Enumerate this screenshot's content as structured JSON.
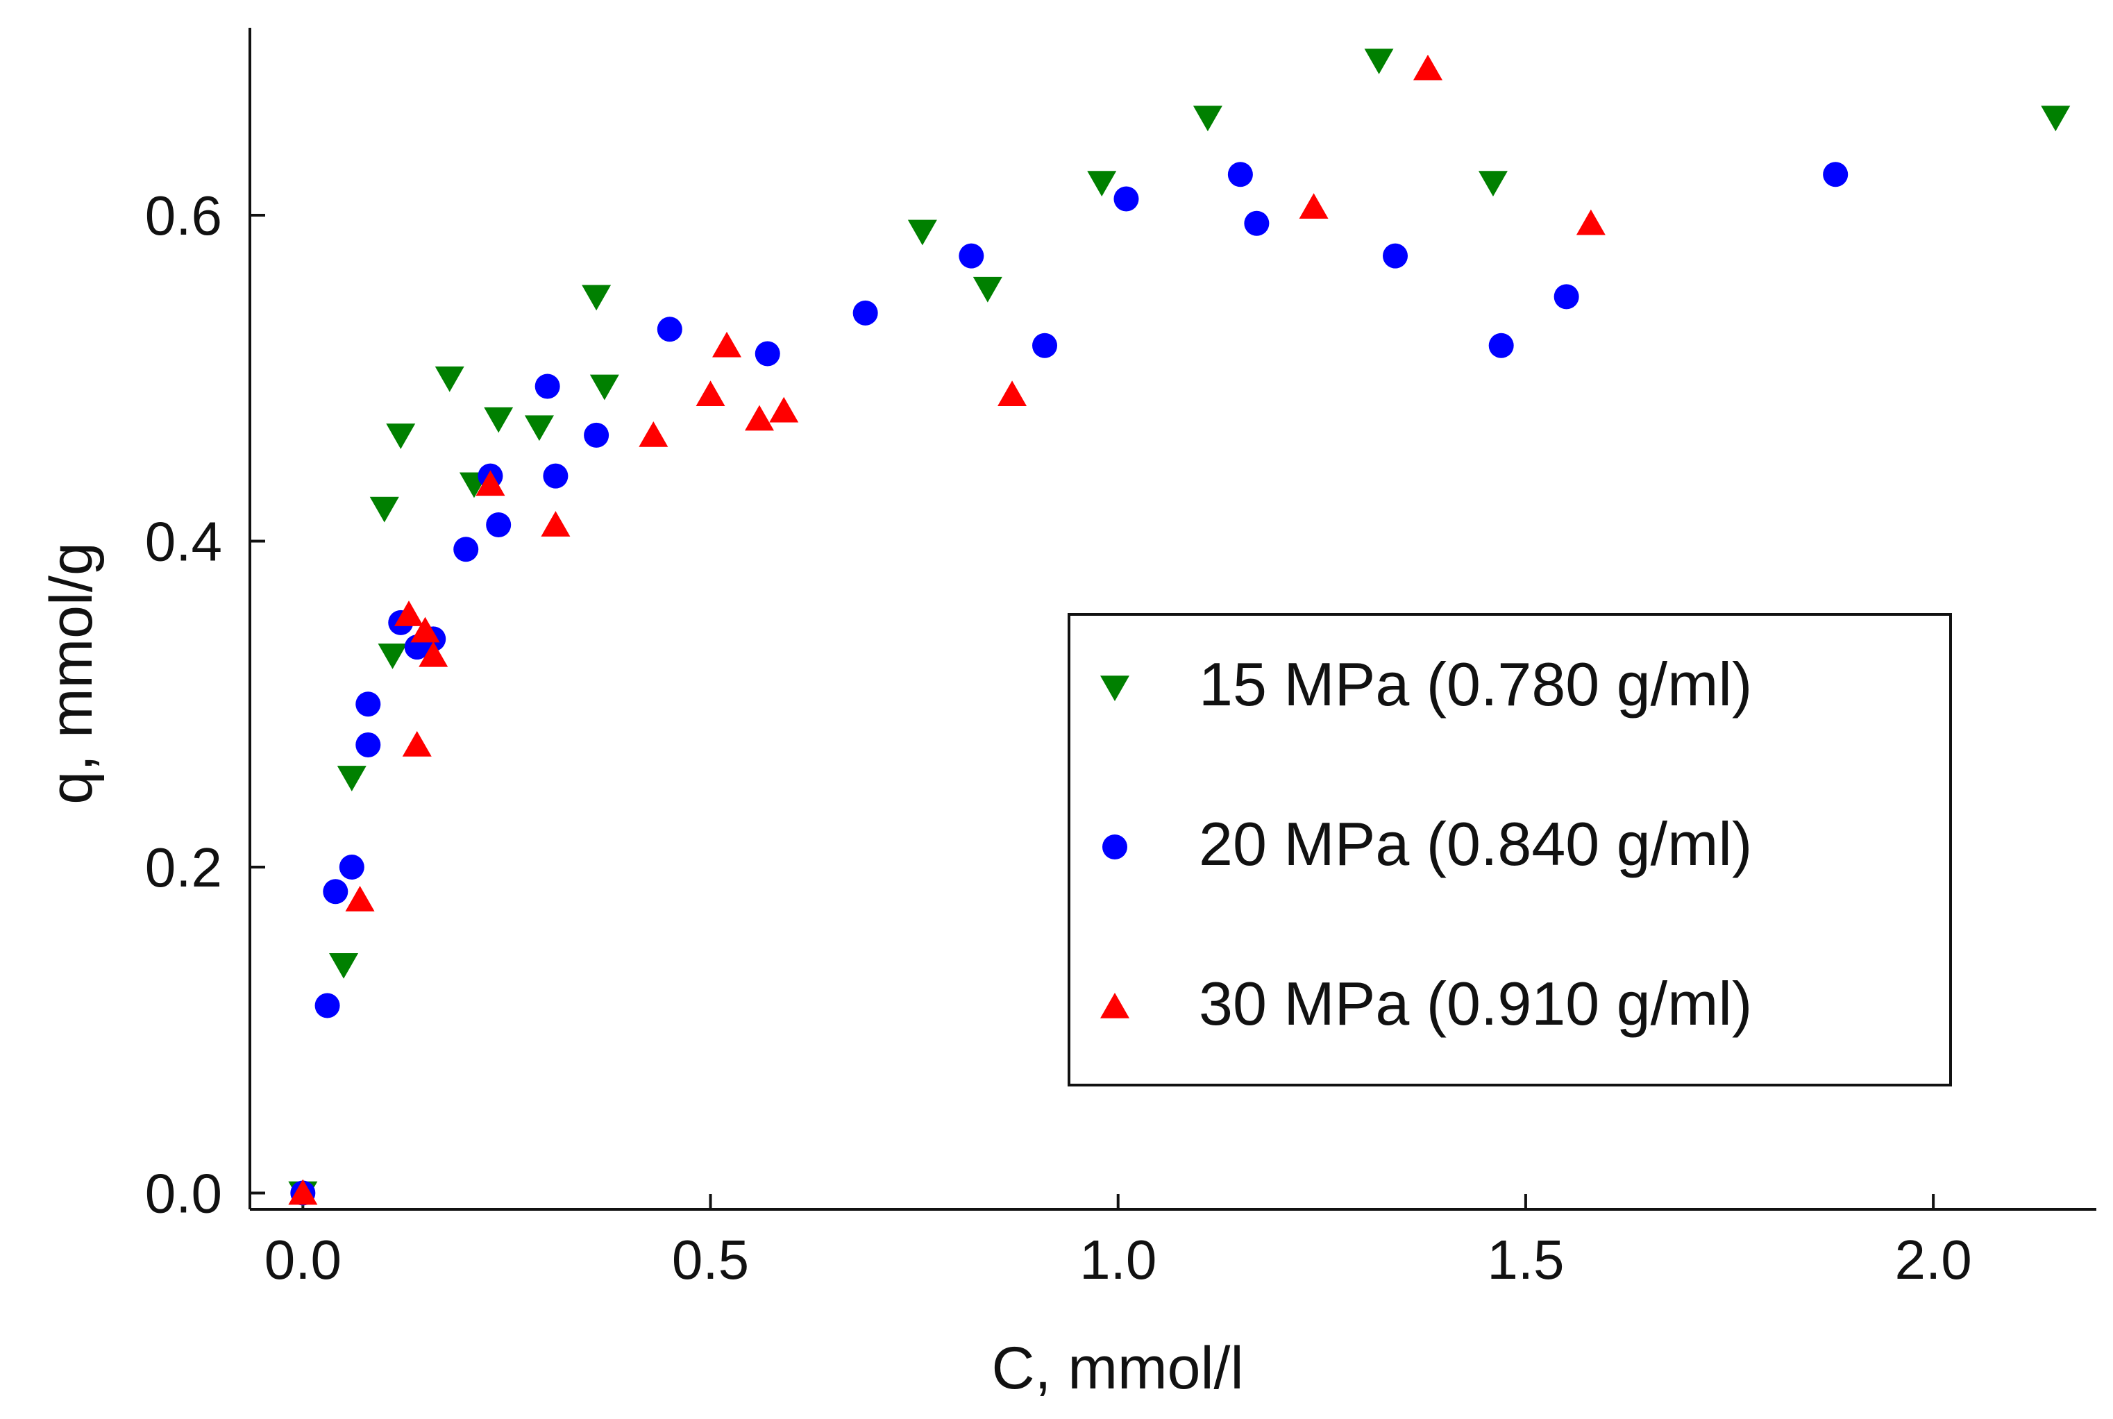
{
  "chart_data": {
    "type": "scatter",
    "title": "",
    "xlabel": "C, mmol/l",
    "ylabel": "q, mmol/g",
    "xlim": [
      -0.065,
      2.2
    ],
    "ylim": [
      -0.01,
      0.715
    ],
    "xticks": [
      0.0,
      0.5,
      1.0,
      1.5,
      2.0
    ],
    "yticks": [
      0.0,
      0.2,
      0.4,
      0.6
    ],
    "xtick_labels": [
      "0.0",
      "0.5",
      "1.0",
      "1.5",
      "2.0"
    ],
    "ytick_labels": [
      "0.0",
      "0.2",
      "0.4",
      "0.6"
    ],
    "grid": false,
    "legend_position": "center-right",
    "series": [
      {
        "name": "15 MPa (0.780 g/ml)",
        "marker": "triangle-down",
        "color": "#008000",
        "points": [
          [
            0.0,
            0.0
          ],
          [
            0.05,
            0.14
          ],
          [
            0.06,
            0.255
          ],
          [
            0.1,
            0.42
          ],
          [
            0.11,
            0.33
          ],
          [
            0.12,
            0.465
          ],
          [
            0.18,
            0.5
          ],
          [
            0.21,
            0.435
          ],
          [
            0.24,
            0.475
          ],
          [
            0.29,
            0.47
          ],
          [
            0.36,
            0.55
          ],
          [
            0.37,
            0.495
          ],
          [
            0.76,
            0.59
          ],
          [
            0.84,
            0.555
          ],
          [
            0.98,
            0.62
          ],
          [
            1.11,
            0.66
          ],
          [
            1.32,
            0.695
          ],
          [
            1.46,
            0.62
          ],
          [
            2.15,
            0.66
          ]
        ]
      },
      {
        "name": "20 MPa (0.840 g/ml)",
        "marker": "circle",
        "color": "#0000ff",
        "points": [
          [
            0.0,
            0.0
          ],
          [
            0.03,
            0.115
          ],
          [
            0.04,
            0.185
          ],
          [
            0.06,
            0.2
          ],
          [
            0.08,
            0.275
          ],
          [
            0.08,
            0.3
          ],
          [
            0.12,
            0.35
          ],
          [
            0.14,
            0.335
          ],
          [
            0.16,
            0.34
          ],
          [
            0.2,
            0.395
          ],
          [
            0.23,
            0.44
          ],
          [
            0.24,
            0.41
          ],
          [
            0.3,
            0.495
          ],
          [
            0.31,
            0.44
          ],
          [
            0.36,
            0.465
          ],
          [
            0.45,
            0.53
          ],
          [
            0.57,
            0.515
          ],
          [
            0.69,
            0.54
          ],
          [
            0.82,
            0.575
          ],
          [
            0.91,
            0.52
          ],
          [
            1.01,
            0.61
          ],
          [
            1.15,
            0.625
          ],
          [
            1.17,
            0.595
          ],
          [
            1.34,
            0.575
          ],
          [
            1.47,
            0.52
          ],
          [
            1.55,
            0.55
          ],
          [
            1.88,
            0.625
          ]
        ]
      },
      {
        "name": "30 MPa (0.910 g/ml)",
        "marker": "triangle-up",
        "color": "#ff0000",
        "points": [
          [
            0.0,
            0.0
          ],
          [
            0.07,
            0.18
          ],
          [
            0.13,
            0.355
          ],
          [
            0.14,
            0.275
          ],
          [
            0.15,
            0.345
          ],
          [
            0.16,
            0.33
          ],
          [
            0.23,
            0.435
          ],
          [
            0.31,
            0.41
          ],
          [
            0.43,
            0.465
          ],
          [
            0.5,
            0.49
          ],
          [
            0.52,
            0.52
          ],
          [
            0.56,
            0.475
          ],
          [
            0.59,
            0.48
          ],
          [
            0.87,
            0.49
          ],
          [
            1.24,
            0.605
          ],
          [
            1.38,
            0.69
          ],
          [
            1.58,
            0.595
          ]
        ]
      }
    ]
  }
}
